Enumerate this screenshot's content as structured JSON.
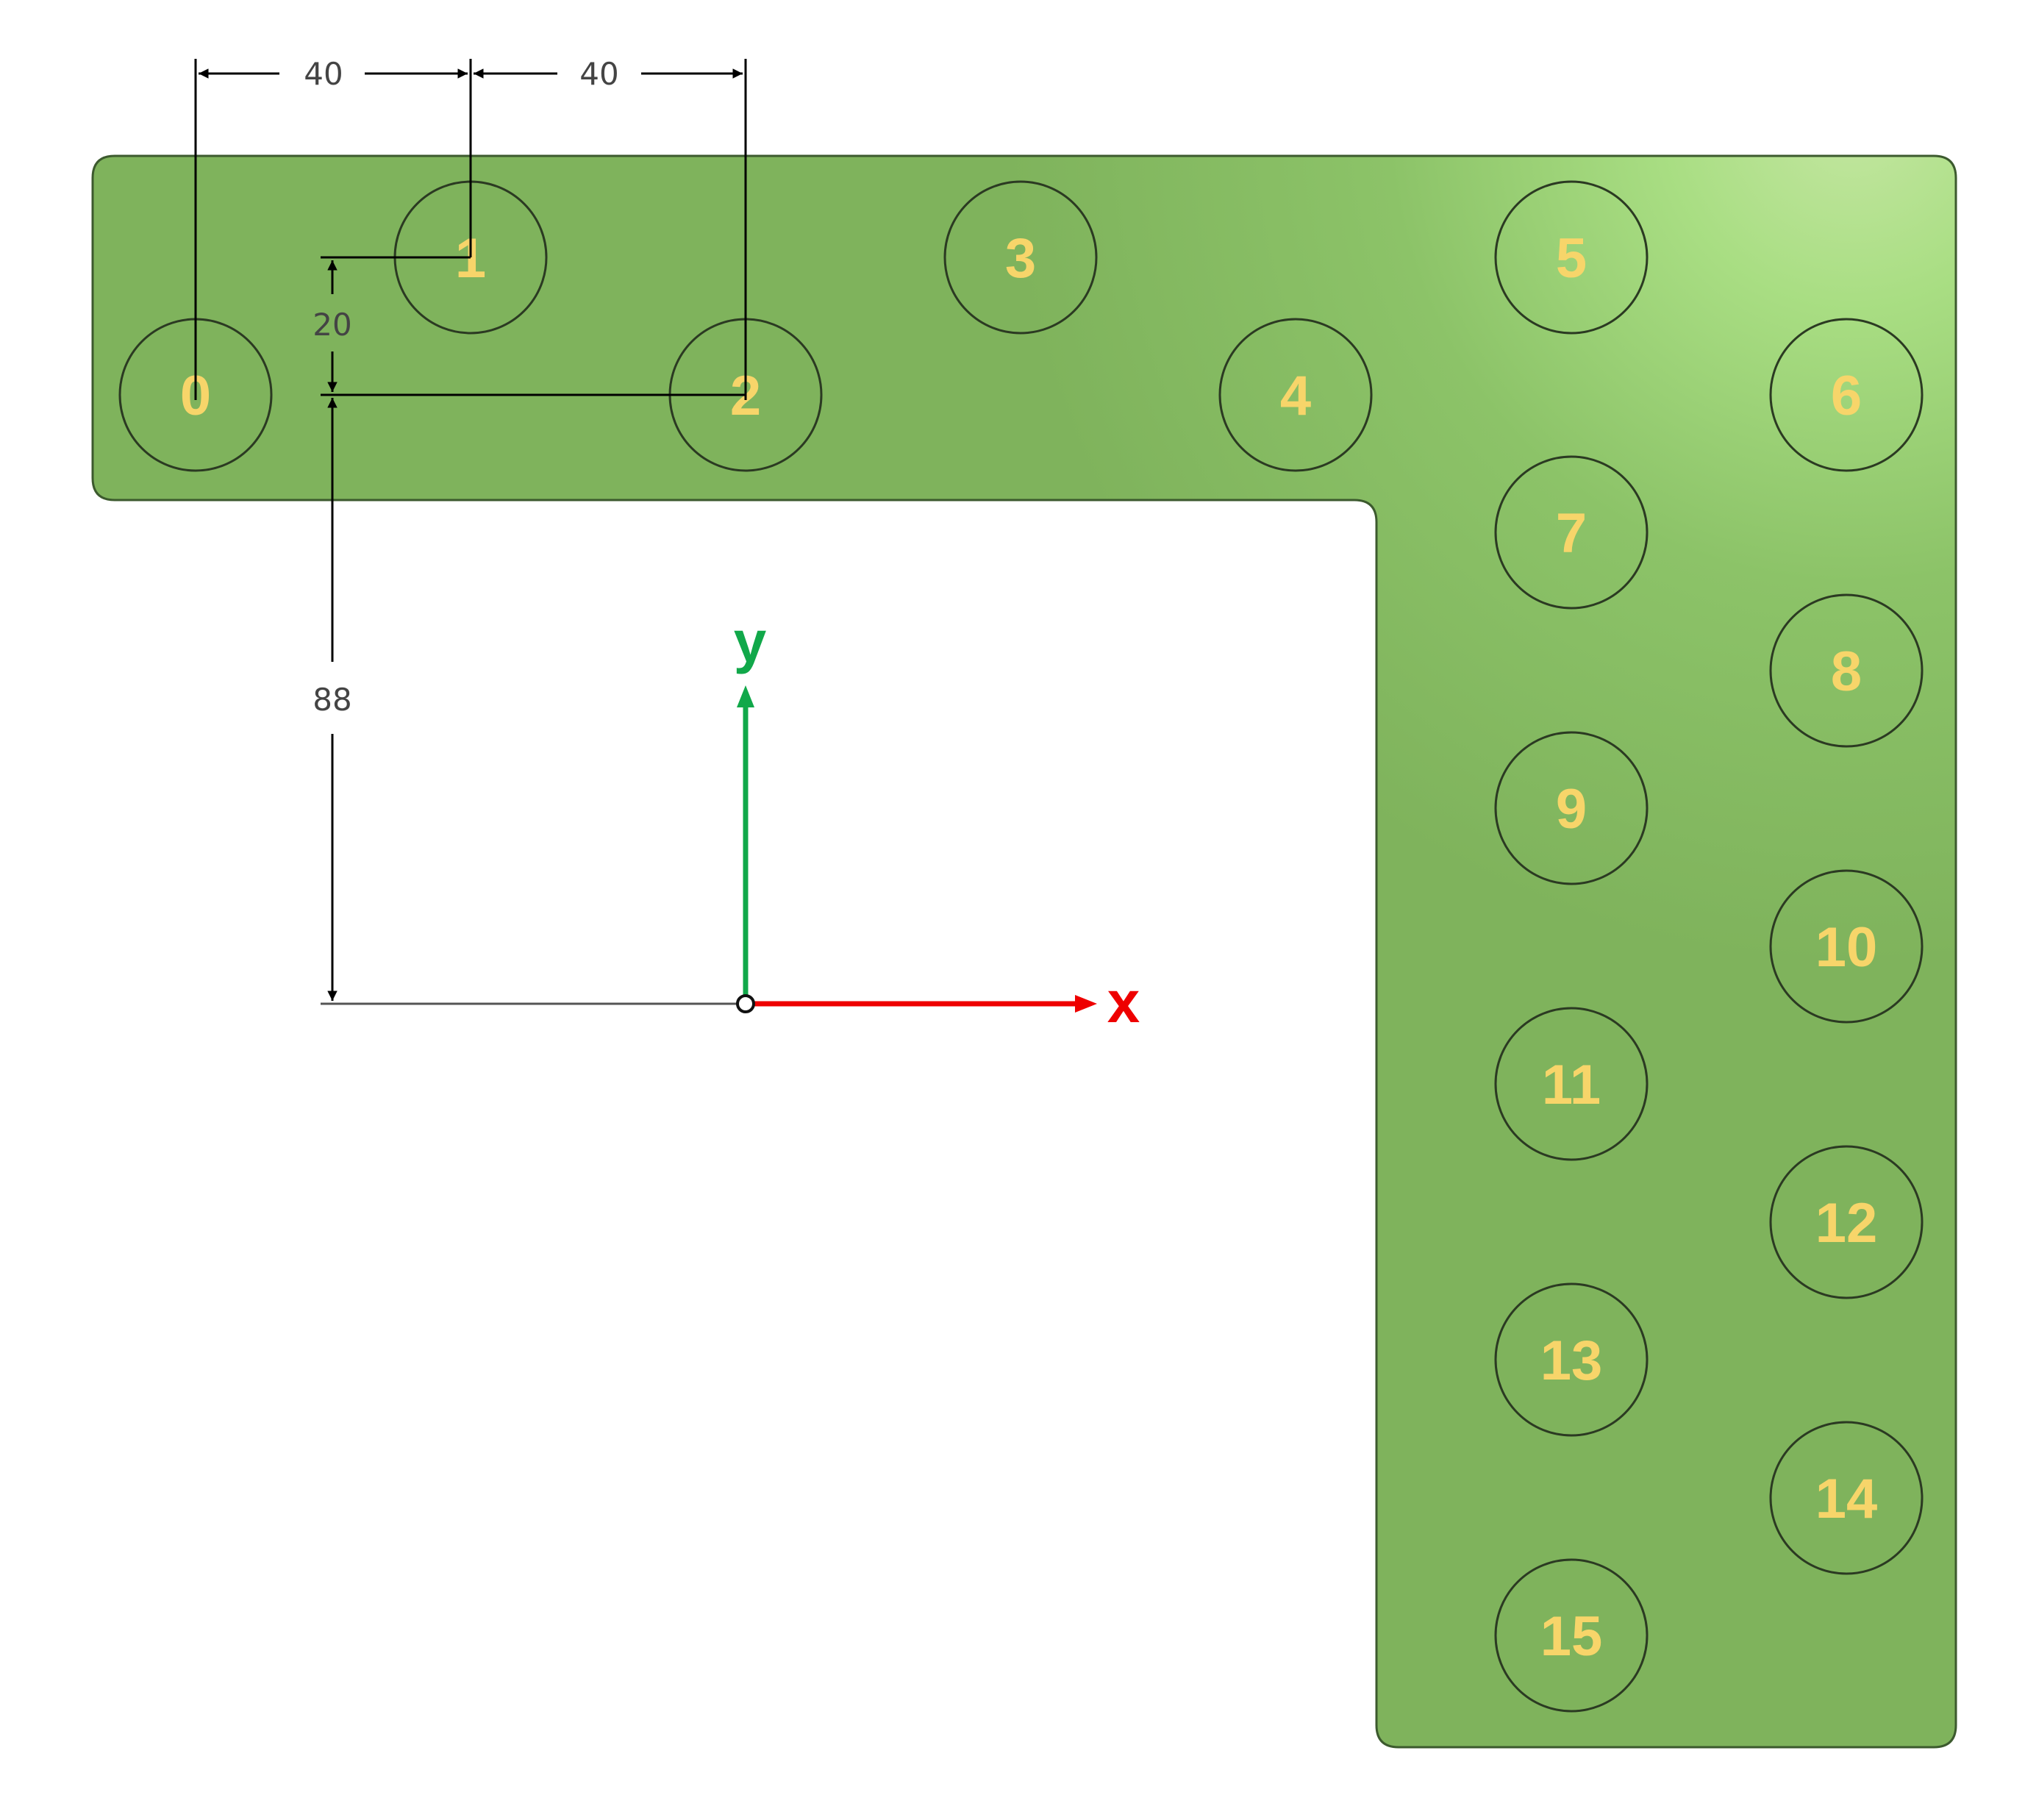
{
  "colors": {
    "plate_base": "#7fb35c",
    "plate_highlight": "#b5e68e",
    "plate_edge": "#3c5a2e",
    "hole_outline": "#2b3a22",
    "hole_label": "#f7d56a",
    "dimension_line": "#000000",
    "dimension_text": "#444444",
    "x_axis": "#ee0000",
    "y_axis": "#11a84a"
  },
  "dimensions": {
    "pitch_x_1": "40",
    "pitch_x_2": "40",
    "row_offset": "20",
    "row_to_origin": "88"
  },
  "axes": {
    "x_label": "x",
    "y_label": "y"
  },
  "holes": [
    {
      "label": "0"
    },
    {
      "label": "1"
    },
    {
      "label": "2"
    },
    {
      "label": "3"
    },
    {
      "label": "4"
    },
    {
      "label": "5"
    },
    {
      "label": "6"
    },
    {
      "label": "7"
    },
    {
      "label": "8"
    },
    {
      "label": "9"
    },
    {
      "label": "10"
    },
    {
      "label": "11"
    },
    {
      "label": "12"
    },
    {
      "label": "13"
    },
    {
      "label": "14"
    },
    {
      "label": "15"
    }
  ]
}
